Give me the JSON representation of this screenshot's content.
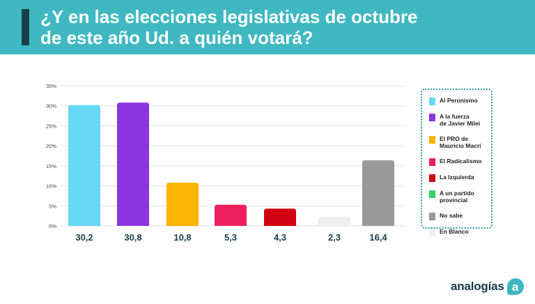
{
  "header": {
    "title": "¿Y en las elecciones legislativas de octubre\nde este año Ud. a quién votará?"
  },
  "chart_data": {
    "type": "bar",
    "title": "¿Y en las elecciones legislativas de octubre de este año Ud. a quién votará?",
    "xlabel": "",
    "ylabel": "",
    "ylim": [
      0,
      35
    ],
    "yticks": [
      "0%",
      "5%",
      "10%",
      "15%",
      "20%",
      "25%",
      "30%",
      "35%"
    ],
    "ytick_values": [
      0,
      5,
      10,
      15,
      20,
      25,
      30,
      35
    ],
    "grid": true,
    "legend_position": "right",
    "categories": [
      "Al Peronismo",
      "A la fuerza de Javier Milei",
      "El PRO de Mauricio Macri",
      "El Radicalismo",
      "La Izquierda",
      "A un partido provincial",
      "No sabe",
      "En Blanco"
    ],
    "bars": [
      {
        "name": "Al Peronismo",
        "value": 30.2,
        "label": "30,2",
        "color": "#66d8f5"
      },
      {
        "name": "A la fuerza de Javier Milei",
        "value": 30.8,
        "label": "30,8",
        "color": "#8b35e3"
      },
      {
        "name": "El PRO de Mauricio Macri",
        "value": 10.8,
        "label": "10,8",
        "color": "#fbb400"
      },
      {
        "name": "El Radicalismo",
        "value": 5.3,
        "label": "5,3",
        "color": "#ee1f5d"
      },
      {
        "name": "La Izquierda",
        "value": 4.3,
        "label": "4,3",
        "color": "#d00010"
      },
      {
        "name": "En Blanco",
        "value": 2.3,
        "label": "2,3",
        "color": "#eeeeee"
      },
      {
        "name": "No sabe",
        "value": 16.4,
        "label": "16,4",
        "color": "#999999"
      }
    ]
  },
  "legend": {
    "items": [
      {
        "label": "Al Peronismo",
        "color": "#66d8f5"
      },
      {
        "label": "A la fuerza\nde Javier Milei",
        "color": "#8b35e3"
      },
      {
        "label": "El PRO de\nMauricio Macri",
        "color": "#fbb400"
      },
      {
        "label": "El Radicalismo",
        "color": "#ee1f5d"
      },
      {
        "label": "La Izquierda",
        "color": "#d00010"
      },
      {
        "label": "A un partido\nprovincial",
        "color": "#3cd06a"
      },
      {
        "label": "No sabe",
        "color": "#999999"
      },
      {
        "label": "En Blanco",
        "color": "#eeeeee"
      }
    ]
  },
  "branding": {
    "logo_text": "analogías",
    "logo_mark": "a"
  }
}
